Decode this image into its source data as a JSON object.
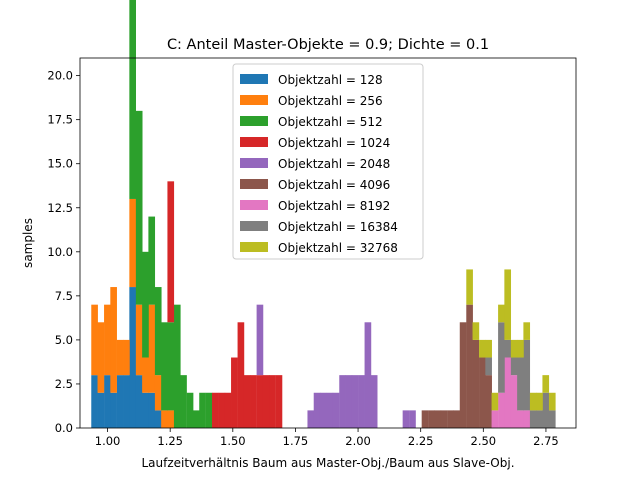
{
  "chart_data": {
    "type": "histogram-stacked",
    "title": "C: Anteil Master-Objekte = 0.9; Dichte = 0.1",
    "xlabel": "Laufzeitverhältnis Baum aus Master-Obj./Baum aus Slave-Obj.",
    "ylabel": "samples",
    "xlim": [
      0.89,
      2.87
    ],
    "ylim": [
      0,
      21
    ],
    "xticks": [
      1.0,
      1.25,
      1.5,
      1.75,
      2.0,
      2.25,
      2.5,
      2.75
    ],
    "xtick_labels": [
      "1.00",
      "1.25",
      "1.50",
      "1.75",
      "2.00",
      "2.25",
      "2.50",
      "2.75"
    ],
    "yticks": [
      0,
      2.5,
      5,
      7.5,
      10,
      12.5,
      15,
      17.5,
      20
    ],
    "ytick_labels": [
      "0.0",
      "2.5",
      "5.0",
      "7.5",
      "10.0",
      "12.5",
      "15.0",
      "17.5",
      "20.0"
    ],
    "grid": false,
    "legend_position": "top-center",
    "bin_width": 0.02535,
    "series": [
      {
        "name": "Objektzahl = 128",
        "color": "#1f77b4",
        "bins": [
          [
            0.935,
            3
          ],
          [
            0.96,
            2
          ],
          [
            0.986,
            3
          ],
          [
            1.011,
            2
          ],
          [
            1.037,
            3
          ],
          [
            1.062,
            3
          ],
          [
            1.087,
            8
          ],
          [
            1.113,
            3
          ],
          [
            1.138,
            2
          ],
          [
            1.163,
            2
          ],
          [
            1.189,
            1
          ]
        ]
      },
      {
        "name": "Objektzahl = 256",
        "color": "#ff7f0e",
        "bins": [
          [
            0.935,
            4
          ],
          [
            0.96,
            4
          ],
          [
            0.986,
            4
          ],
          [
            1.011,
            6
          ],
          [
            1.037,
            2
          ],
          [
            1.062,
            2
          ],
          [
            1.087,
            5
          ],
          [
            1.113,
            4
          ],
          [
            1.138,
            2
          ],
          [
            1.163,
            5
          ],
          [
            1.189,
            2
          ],
          [
            1.214,
            1
          ],
          [
            1.239,
            1
          ]
        ]
      },
      {
        "name": "Objektzahl = 512",
        "color": "#2ca02c",
        "bins": [
          [
            1.087,
            14
          ],
          [
            1.113,
            11
          ],
          [
            1.138,
            6
          ],
          [
            1.163,
            5
          ],
          [
            1.189,
            5
          ],
          [
            1.214,
            5
          ],
          [
            1.239,
            5
          ],
          [
            1.265,
            7
          ],
          [
            1.29,
            3
          ],
          [
            1.316,
            2
          ],
          [
            1.341,
            1
          ],
          [
            1.366,
            2
          ],
          [
            1.392,
            2
          ]
        ]
      },
      {
        "name": "Objektzahl = 1024",
        "color": "#d62728",
        "bins": [
          [
            1.239,
            8
          ],
          [
            1.417,
            2
          ],
          [
            1.443,
            2
          ],
          [
            1.468,
            2
          ],
          [
            1.493,
            4
          ],
          [
            1.519,
            6
          ],
          [
            1.544,
            3
          ],
          [
            1.569,
            3
          ],
          [
            1.595,
            3
          ],
          [
            1.62,
            3
          ],
          [
            1.645,
            3
          ],
          [
            1.671,
            3
          ]
        ]
      },
      {
        "name": "Objektzahl = 2048",
        "color": "#9467bd",
        "bins": [
          [
            1.595,
            4
          ],
          [
            1.798,
            1
          ],
          [
            1.823,
            2
          ],
          [
            1.848,
            2
          ],
          [
            1.874,
            2
          ],
          [
            1.899,
            2
          ],
          [
            1.925,
            3
          ],
          [
            1.95,
            3
          ],
          [
            1.975,
            3
          ],
          [
            2.001,
            3
          ],
          [
            2.026,
            6
          ],
          [
            2.051,
            3
          ],
          [
            2.178,
            1
          ],
          [
            2.204,
            1
          ]
        ]
      },
      {
        "name": "Objektzahl = 4096",
        "color": "#8c564b",
        "bins": [
          [
            2.254,
            1
          ],
          [
            2.28,
            1
          ],
          [
            2.305,
            1
          ],
          [
            2.33,
            1
          ],
          [
            2.356,
            1
          ],
          [
            2.381,
            1
          ],
          [
            2.406,
            6
          ],
          [
            2.432,
            7
          ],
          [
            2.457,
            5
          ],
          [
            2.483,
            4
          ],
          [
            2.508,
            3
          ]
        ]
      },
      {
        "name": "Objektzahl = 8192",
        "color": "#e377c2",
        "bins": [
          [
            2.533,
            1
          ],
          [
            2.559,
            2
          ],
          [
            2.584,
            4
          ],
          [
            2.61,
            3
          ],
          [
            2.635,
            1
          ],
          [
            2.66,
            1
          ]
        ]
      },
      {
        "name": "Objektzahl = 16384",
        "color": "#7f7f7f",
        "bins": [
          [
            2.508,
            1
          ],
          [
            2.559,
            4
          ],
          [
            2.584,
            1
          ],
          [
            2.61,
            1
          ],
          [
            2.635,
            3
          ],
          [
            2.66,
            4
          ],
          [
            2.686,
            1
          ],
          [
            2.711,
            1
          ],
          [
            2.736,
            2
          ],
          [
            2.762,
            1
          ]
        ]
      },
      {
        "name": "Objektzahl = 32768",
        "color": "#bcbd22",
        "bins": [
          [
            2.432,
            2
          ],
          [
            2.457,
            1
          ],
          [
            2.483,
            1
          ],
          [
            2.508,
            1
          ],
          [
            2.533,
            1
          ],
          [
            2.559,
            1
          ],
          [
            2.584,
            4
          ],
          [
            2.61,
            1
          ],
          [
            2.635,
            1
          ],
          [
            2.66,
            1
          ],
          [
            2.686,
            1
          ],
          [
            2.711,
            1
          ],
          [
            2.736,
            1
          ],
          [
            2.762,
            1
          ]
        ]
      }
    ]
  }
}
